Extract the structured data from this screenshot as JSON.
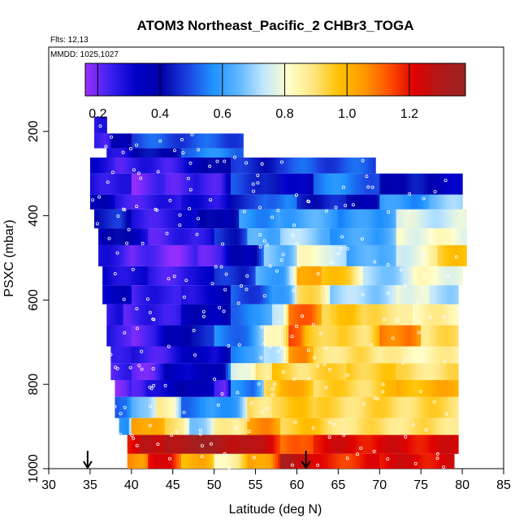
{
  "chart_data": {
    "type": "heatmap",
    "title": "ATOM3 Northeast_Pacific_2 CHBr3_TOGA",
    "flights_label": "Flts: 12,13",
    "dates_label": "MMDD: 1025,1027",
    "xlabel": "Latitude (deg N)",
    "ylabel": "PSXC (mbar)",
    "xlim": [
      30,
      85
    ],
    "ylim": [
      1000,
      0
    ],
    "xticks": [
      "30",
      "35",
      "40",
      "45",
      "50",
      "55",
      "60",
      "65",
      "70",
      "75",
      "80",
      "85"
    ],
    "yticks": [
      "200",
      "400",
      "600",
      "800",
      "1000"
    ],
    "colorbar": {
      "range": [
        0.16,
        1.38
      ],
      "ticks": [
        "0.2",
        "0.4",
        "0.6",
        "0.8",
        "1.0",
        "1.2"
      ],
      "tick_values": [
        0.2,
        0.4,
        0.6,
        0.8,
        1.0,
        1.2
      ],
      "colors": [
        "#9b30ff",
        "#3a1ff0",
        "#0000c8",
        "#0000a8",
        "#1a3fe0",
        "#1e90ff",
        "#5ab4ff",
        "#bfe6ff",
        "#ffffcc",
        "#ffe680",
        "#ffc000",
        "#ff9900",
        "#ff5000",
        "#e00000",
        "#b01818",
        "#9b2222"
      ]
    },
    "markers": [
      {
        "lat": 34.7,
        "label": "down-arrow"
      },
      {
        "lat": 61.1,
        "label": "down-arrow"
      }
    ],
    "bands": [
      {
        "p": [
          165,
          205
        ],
        "segments": [
          [
            35.5,
            37.0,
            0.25
          ]
        ]
      },
      {
        "p": [
          205,
          240
        ],
        "segments": [
          [
            35.5,
            37.5,
            0.22
          ],
          [
            37.5,
            40,
            0.35
          ],
          [
            40,
            53.5,
            0.5
          ]
        ]
      },
      {
        "p": [
          240,
          262
        ],
        "segments": [
          [
            37.0,
            40,
            0.3
          ],
          [
            40,
            46,
            0.4
          ],
          [
            46,
            53.5,
            0.55
          ]
        ]
      },
      {
        "p": [
          262,
          300
        ],
        "segments": [
          [
            35.0,
            38,
            0.3
          ],
          [
            38,
            47,
            0.25
          ],
          [
            47,
            52,
            0.38
          ],
          [
            52,
            58,
            0.45
          ],
          [
            58,
            69.5,
            0.5
          ]
        ]
      },
      {
        "p": [
          300,
          350
        ],
        "segments": [
          [
            35.0,
            40,
            0.28
          ],
          [
            40,
            44,
            0.2
          ],
          [
            44,
            48,
            0.24
          ],
          [
            48,
            52,
            0.25
          ],
          [
            52,
            58,
            0.48
          ],
          [
            58,
            62,
            0.3
          ],
          [
            62,
            70,
            0.55
          ],
          [
            70,
            76,
            0.42
          ],
          [
            76,
            80,
            0.35
          ]
        ]
      },
      {
        "p": [
          350,
          385
        ],
        "segments": [
          [
            35.0,
            38,
            0.35
          ],
          [
            38,
            46,
            0.25
          ],
          [
            46,
            52,
            0.28
          ],
          [
            52,
            56,
            0.45
          ],
          [
            56,
            60,
            0.55
          ],
          [
            60,
            66,
            0.45
          ],
          [
            66,
            70,
            0.38
          ],
          [
            70,
            76,
            0.58
          ],
          [
            76,
            80,
            0.68
          ]
        ]
      },
      {
        "p": [
          385,
          430
        ],
        "segments": [
          [
            35.5,
            40,
            0.45
          ],
          [
            40,
            48,
            0.26
          ],
          [
            48,
            53,
            0.38
          ],
          [
            53,
            58,
            0.58
          ],
          [
            58,
            65,
            0.62
          ],
          [
            65,
            72,
            0.58
          ],
          [
            72,
            80.5,
            0.75
          ]
        ]
      },
      {
        "p": [
          430,
          470
        ],
        "segments": [
          [
            36.0,
            42,
            0.38
          ],
          [
            42,
            50,
            0.24
          ],
          [
            50,
            54,
            0.45
          ],
          [
            54,
            58,
            0.62
          ],
          [
            58,
            64,
            0.7
          ],
          [
            64,
            72,
            0.6
          ],
          [
            72,
            80.5,
            0.8
          ]
        ]
      },
      {
        "p": [
          470,
          520
        ],
        "segments": [
          [
            36.0,
            40,
            0.26
          ],
          [
            40,
            48,
            0.2
          ],
          [
            48,
            52,
            0.23
          ],
          [
            52,
            56,
            0.4
          ],
          [
            56,
            60,
            0.66
          ],
          [
            60,
            66,
            0.8
          ],
          [
            66,
            72,
            0.62
          ],
          [
            72,
            77,
            0.78
          ],
          [
            77,
            80.5,
            0.95
          ]
        ]
      },
      {
        "p": [
          520,
          565
        ],
        "segments": [
          [
            36.5,
            42,
            0.3
          ],
          [
            42,
            50,
            0.25
          ],
          [
            50,
            55,
            0.45
          ],
          [
            55,
            60,
            0.62
          ],
          [
            60,
            63,
            1.05
          ],
          [
            63,
            68,
            0.95
          ],
          [
            68,
            74,
            0.7
          ],
          [
            74,
            80,
            0.8
          ]
        ]
      },
      {
        "p": [
          565,
          610
        ],
        "segments": [
          [
            36.5,
            40,
            0.35
          ],
          [
            40,
            46,
            0.25
          ],
          [
            46,
            52,
            0.3
          ],
          [
            52,
            57,
            0.5
          ],
          [
            57,
            60,
            0.62
          ],
          [
            60,
            64,
            0.9
          ],
          [
            64,
            72,
            0.7
          ],
          [
            72,
            76,
            0.8
          ],
          [
            76,
            79.5,
            0.72
          ]
        ]
      },
      {
        "p": [
          610,
          660
        ],
        "segments": [
          [
            37.0,
            39,
            0.28
          ],
          [
            39,
            46,
            0.24
          ],
          [
            46,
            52,
            0.35
          ],
          [
            52,
            57,
            0.55
          ],
          [
            57,
            59,
            0.72
          ],
          [
            59,
            63,
            1.1
          ],
          [
            63,
            68,
            0.95
          ],
          [
            68,
            74,
            0.9
          ],
          [
            74,
            79.5,
            0.85
          ]
        ]
      },
      {
        "p": [
          660,
          710
        ],
        "segments": [
          [
            37.0,
            40,
            0.26
          ],
          [
            40,
            44,
            0.22
          ],
          [
            44,
            50,
            0.4
          ],
          [
            50,
            56,
            0.55
          ],
          [
            56,
            59,
            0.8
          ],
          [
            59,
            61,
            1.15
          ],
          [
            61,
            65,
            0.95
          ],
          [
            65,
            70,
            0.92
          ],
          [
            70,
            75,
            1.1
          ],
          [
            75,
            79.5,
            0.9
          ]
        ]
      },
      {
        "p": [
          710,
          750
        ],
        "segments": [
          [
            37.5,
            40,
            0.28
          ],
          [
            40,
            46,
            0.25
          ],
          [
            46,
            52,
            0.32
          ],
          [
            52,
            56,
            0.58
          ],
          [
            56,
            59,
            0.75
          ],
          [
            59,
            62,
            1.05
          ],
          [
            62,
            70,
            0.9
          ],
          [
            70,
            79.5,
            0.85
          ]
        ]
      },
      {
        "p": [
          750,
          790
        ],
        "segments": [
          [
            37.5,
            40,
            0.24
          ],
          [
            40,
            44,
            0.22
          ],
          [
            44,
            49,
            0.35
          ],
          [
            49,
            52,
            0.4
          ],
          [
            52,
            55,
            0.75
          ],
          [
            55,
            57,
            0.88
          ],
          [
            57,
            60,
            0.95
          ],
          [
            60,
            66,
            0.92
          ],
          [
            66,
            72,
            0.95
          ],
          [
            72,
            79.5,
            0.9
          ]
        ]
      },
      {
        "p": [
          790,
          830
        ],
        "segments": [
          [
            38.0,
            40,
            0.2
          ],
          [
            40,
            42,
            0.25
          ],
          [
            42,
            46,
            0.32
          ],
          [
            46,
            50,
            0.4
          ],
          [
            50,
            52,
            0.2
          ],
          [
            52,
            56,
            0.55
          ],
          [
            56,
            58,
            0.9
          ],
          [
            58,
            62,
            1.0
          ],
          [
            62,
            72,
            0.93
          ],
          [
            72,
            79.5,
            1.0
          ]
        ]
      },
      {
        "p": [
          830,
          880
        ],
        "segments": [
          [
            38.0,
            40,
            0.5
          ],
          [
            40,
            43,
            0.65
          ],
          [
            43,
            46,
            0.85
          ],
          [
            46,
            50,
            0.55
          ],
          [
            50,
            54,
            0.6
          ],
          [
            54,
            57,
            0.9
          ],
          [
            57,
            62,
            0.95
          ],
          [
            62,
            79.5,
            0.92
          ]
        ]
      },
      {
        "p": [
          880,
          920
        ],
        "segments": [
          [
            38.5,
            40,
            0.55
          ],
          [
            40,
            44,
            1.05
          ],
          [
            44,
            47,
            0.9
          ],
          [
            47,
            50,
            0.7
          ],
          [
            50,
            54,
            0.85
          ],
          [
            54,
            58,
            1.05
          ],
          [
            58,
            64,
            0.95
          ],
          [
            64,
            79.5,
            0.9
          ]
        ]
      },
      {
        "p": [
          920,
          965
        ],
        "segments": [
          [
            39.5,
            41,
            1.2
          ],
          [
            41,
            44,
            1.25
          ],
          [
            44,
            54,
            1.32
          ],
          [
            54,
            58,
            1.25
          ],
          [
            58,
            62,
            1.1
          ],
          [
            62,
            79.5,
            1.22
          ]
        ]
      },
      {
        "p": [
          965,
          1005
        ],
        "segments": [
          [
            39.5,
            42,
            1.05
          ],
          [
            42,
            46,
            1.2
          ],
          [
            46,
            50,
            1.0
          ],
          [
            50,
            54,
            0.85
          ],
          [
            54,
            58,
            1.05
          ],
          [
            58,
            62,
            1.3
          ],
          [
            62,
            70,
            1.18
          ],
          [
            70,
            79,
            1.22
          ]
        ]
      }
    ]
  }
}
